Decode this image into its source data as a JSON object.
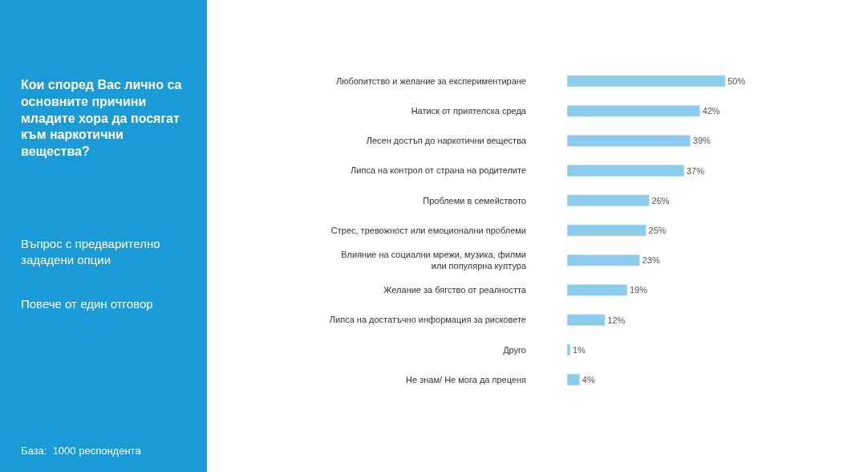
{
  "chart_data": {
    "type": "bar",
    "orientation": "horizontal",
    "title": "Кои според Вас лично са\nосновните причини\nмладите хора да посягат\nкъм наркотични\nвещества?",
    "subtitle": "Въпрос с предварително\nзададени опции",
    "annotations": [
      "Повече от един отговор",
      "База:  1000 респондента"
    ],
    "categories": [
      "Любопитство и желание за експериментиране",
      "Натиск от приятелска среда",
      "Лесен достъп до наркотични вещества",
      "Липса на контрол от страна на родителите",
      "Проблеми в семейството",
      "Стрес, тревожност или емоционални проблеми",
      "Влияние на социални мрежи, музика, филми\nили популярна култура",
      "Желание за бягство от реалността",
      "Липса на достатъчно информация за рисковете",
      "Друго",
      "Не знам/ Не мога да преценя"
    ],
    "values": [
      50,
      42,
      39,
      37,
      26,
      25,
      23,
      19,
      12,
      1,
      4
    ],
    "value_labels": [
      "50%",
      "42%",
      "39%",
      "37%",
      "26%",
      "25%",
      "23%",
      "19%",
      "12%",
      "1%",
      "4%"
    ],
    "color": "#8ccbec"
  }
}
